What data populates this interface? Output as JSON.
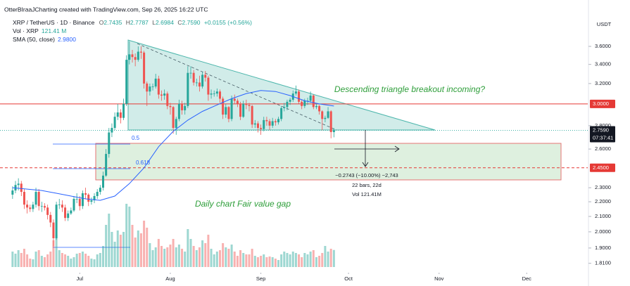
{
  "header": {
    "watermark": "OtterBIraaJCharting created with TradingView.com, Sep 26, 2025 16:22 UTC",
    "symbol": "XRP / TetherUS · 1D · Binance",
    "ohlc": [
      {
        "key": "O",
        "value": "2.7435"
      },
      {
        "key": "H",
        "value": "2.7787"
      },
      {
        "key": "L",
        "value": "2.6984"
      },
      {
        "key": "C",
        "value": "2.7590"
      }
    ],
    "change": "+0.0155 (+0.56%)",
    "volume_name": "Vol · XRP",
    "volume_value": "121.41 M",
    "sma_name": "SMA (50, close)",
    "sma_value": "2.9800"
  },
  "annotations": {
    "triangle": "Descending triangle breakout incoming?",
    "fvg": "Daily chart Fair value gap",
    "fib_05": "0.5",
    "fib_0618": "0.618",
    "measure_change": "−0.2743 (−10.00%) −2,743",
    "measure_bars": "22 bars, 22d",
    "measure_vol": "Vol 121.41M"
  },
  "chart_data": {
    "type": "candlestick",
    "currency": "USDT",
    "log": true,
    "up_color": "#26a69a",
    "down_color": "#ef5350",
    "open": [
      2.25,
      2.28,
      2.32,
      2.33,
      2.27,
      2.18,
      2.16,
      2.15,
      2.18,
      2.27,
      2.17,
      2.17,
      2.16,
      2.11,
      2.06,
      1.96,
      2.18,
      2.18,
      2.16,
      2.09,
      2.12,
      2.14,
      2.22,
      2.22,
      2.17,
      2.26,
      2.25,
      2.2,
      2.21,
      2.24,
      2.27,
      2.3,
      2.39,
      2.56,
      2.74,
      2.78,
      2.88,
      2.92,
      2.87,
      3.0,
      3.45,
      3.51,
      3.48,
      3.45,
      3.54,
      3.53,
      3.2,
      3.12,
      3.17,
      3.17,
      3.25,
      3.09,
      3.08,
      3.1,
      2.98,
      2.97,
      2.78,
      2.86,
      3.0,
      2.94,
      2.98,
      3.31,
      3.31,
      3.21,
      3.21,
      3.17,
      3.29,
      3.26,
      3.09,
      3.1,
      3.1,
      3.12,
      3.05,
      2.9,
      2.97,
      2.86,
      3.05,
      3.03,
      3.0,
      2.88,
      3.0,
      2.99,
      2.98,
      2.81,
      2.82,
      2.78,
      2.77,
      2.85,
      2.84,
      2.8,
      2.84,
      2.83,
      2.86,
      2.96,
      2.97,
      3.02,
      3.04,
      3.1,
      3.12,
      3.02,
      2.98,
      3.03,
      3.03,
      3.08,
      2.97,
      2.98,
      2.93,
      2.86,
      2.87,
      2.93,
      2.7435
    ],
    "high": [
      2.31,
      2.35,
      2.37,
      2.35,
      2.29,
      2.21,
      2.18,
      2.2,
      2.3,
      2.29,
      2.2,
      2.19,
      2.18,
      2.13,
      2.08,
      2.2,
      2.22,
      2.21,
      2.18,
      2.14,
      2.16,
      2.24,
      2.26,
      2.24,
      2.28,
      2.3,
      2.26,
      2.23,
      2.26,
      2.29,
      2.32,
      2.42,
      2.6,
      2.78,
      2.82,
      2.92,
      3.0,
      2.95,
      3.05,
      3.5,
      3.66,
      3.56,
      3.52,
      3.6,
      3.6,
      3.55,
      3.22,
      3.2,
      3.2,
      3.3,
      3.28,
      3.13,
      3.14,
      3.12,
      3.01,
      2.98,
      2.88,
      3.04,
      3.03,
      3.01,
      3.38,
      3.38,
      3.34,
      3.25,
      3.28,
      3.32,
      3.33,
      3.28,
      3.14,
      3.13,
      3.15,
      3.14,
      3.07,
      3.0,
      2.98,
      3.08,
      3.09,
      3.05,
      3.02,
      3.03,
      3.04,
      3.01,
      2.99,
      2.85,
      2.84,
      2.81,
      2.88,
      2.88,
      2.86,
      2.87,
      2.86,
      2.88,
      2.98,
      3.01,
      3.04,
      3.06,
      3.13,
      3.18,
      3.14,
      3.04,
      3.05,
      3.06,
      3.12,
      3.09,
      3.0,
      2.99,
      2.94,
      2.89,
      2.97,
      2.94,
      2.7787
    ],
    "low": [
      2.22,
      2.26,
      2.28,
      2.24,
      2.15,
      2.12,
      2.13,
      2.13,
      2.16,
      2.14,
      2.13,
      2.14,
      2.08,
      2.03,
      1.91,
      1.95,
      2.15,
      2.13,
      2.07,
      2.07,
      2.11,
      2.13,
      2.19,
      2.14,
      2.15,
      2.22,
      2.17,
      2.18,
      2.19,
      2.22,
      2.25,
      2.28,
      2.38,
      2.53,
      2.7,
      2.76,
      2.85,
      2.82,
      2.85,
      2.98,
      3.4,
      3.42,
      3.38,
      3.43,
      3.46,
      3.15,
      2.98,
      3.08,
      3.13,
      3.15,
      3.05,
      3.03,
      3.04,
      2.95,
      2.9,
      2.73,
      2.72,
      2.84,
      2.9,
      2.9,
      2.96,
      3.25,
      3.18,
      3.17,
      3.12,
      3.15,
      3.22,
      3.03,
      3.05,
      3.07,
      3.07,
      3.01,
      2.86,
      2.87,
      2.83,
      2.84,
      3.0,
      2.97,
      2.85,
      2.87,
      2.95,
      2.93,
      2.78,
      2.78,
      2.74,
      2.72,
      2.75,
      2.8,
      2.76,
      2.78,
      2.8,
      2.81,
      2.84,
      2.93,
      2.94,
      2.99,
      3.02,
      3.08,
      3.0,
      2.95,
      2.96,
      2.99,
      3.01,
      2.95,
      2.95,
      2.9,
      2.76,
      2.83,
      2.86,
      2.69,
      2.6984
    ],
    "close": [
      2.28,
      2.32,
      2.33,
      2.27,
      2.18,
      2.16,
      2.15,
      2.18,
      2.27,
      2.17,
      2.17,
      2.16,
      2.11,
      2.06,
      1.96,
      2.18,
      2.18,
      2.16,
      2.09,
      2.12,
      2.14,
      2.22,
      2.22,
      2.17,
      2.26,
      2.25,
      2.2,
      2.21,
      2.24,
      2.27,
      2.3,
      2.39,
      2.56,
      2.74,
      2.78,
      2.88,
      2.92,
      2.87,
      3.0,
      3.45,
      3.51,
      3.48,
      3.45,
      3.54,
      3.53,
      3.2,
      3.12,
      3.17,
      3.17,
      3.25,
      3.09,
      3.08,
      3.1,
      2.98,
      2.97,
      2.78,
      2.86,
      3.0,
      2.94,
      2.98,
      3.31,
      3.31,
      3.21,
      3.21,
      3.17,
      3.29,
      3.26,
      3.09,
      3.1,
      3.1,
      3.12,
      3.05,
      2.9,
      2.97,
      2.86,
      3.05,
      3.03,
      3.0,
      2.88,
      3.0,
      2.99,
      2.98,
      2.81,
      2.82,
      2.78,
      2.77,
      2.85,
      2.84,
      2.8,
      2.84,
      2.83,
      2.86,
      2.96,
      2.97,
      3.02,
      3.04,
      3.1,
      3.12,
      3.02,
      2.98,
      3.03,
      3.03,
      3.08,
      2.97,
      2.98,
      2.93,
      2.86,
      2.87,
      2.93,
      2.7435,
      2.759
    ],
    "volume": [
      110,
      95,
      120,
      100,
      130,
      90,
      60,
      55,
      110,
      120,
      80,
      70,
      90,
      110,
      190,
      230,
      120,
      100,
      90,
      80,
      60,
      70,
      95,
      100,
      110,
      95,
      80,
      60,
      55,
      90,
      100,
      150,
      300,
      380,
      250,
      180,
      260,
      230,
      250,
      450,
      430,
      300,
      210,
      260,
      240,
      330,
      280,
      170,
      120,
      140,
      200,
      150,
      130,
      140,
      160,
      200,
      140,
      160,
      130,
      110,
      270,
      200,
      150,
      120,
      140,
      190,
      170,
      230,
      130,
      90,
      110,
      120,
      170,
      140,
      130,
      160,
      110,
      80,
      120,
      100,
      90,
      90,
      130,
      80,
      70,
      80,
      90,
      70,
      75,
      70,
      60,
      50,
      90,
      110,
      100,
      90,
      110,
      100,
      90,
      70,
      100,
      90,
      110,
      120,
      70,
      80,
      100,
      150,
      110,
      130,
      121.41
    ],
    "sma": {
      "name": "SMA (50, close)",
      "color": "#2962ff",
      "x": [
        0,
        5,
        10,
        15,
        20,
        25,
        30,
        35,
        40,
        45,
        50,
        55,
        60,
        65,
        70,
        75,
        80,
        85,
        90,
        95,
        100,
        105,
        110
      ],
      "values": [
        2.3,
        2.29,
        2.28,
        2.26,
        2.24,
        2.22,
        2.21,
        2.24,
        2.33,
        2.45,
        2.62,
        2.75,
        2.85,
        2.93,
        2.99,
        3.05,
        3.1,
        3.13,
        3.12,
        3.08,
        3.03,
        3.0,
        2.98
      ]
    },
    "xlim": [
      -4.3,
      196.9
    ],
    "xticks": [
      {
        "value": 23,
        "label": "Jul"
      },
      {
        "value": 54,
        "label": "Aug"
      },
      {
        "value": 85,
        "label": "Sep"
      },
      {
        "value": 115,
        "label": "Oct"
      },
      {
        "value": 146,
        "label": "Nov"
      },
      {
        "value": 176,
        "label": "Dec"
      }
    ],
    "ylim": [
      1.769,
      4.17
    ],
    "yticks": [
      {
        "value": 3.6,
        "label": "3.6000"
      },
      {
        "value": 3.4,
        "label": "3.4000"
      },
      {
        "value": 3.2,
        "label": "3.2000"
      },
      {
        "value": 2.8,
        "label": "2.8000"
      },
      {
        "value": 2.6,
        "label": "2.6000"
      },
      {
        "value": 2.3,
        "label": "2.3000"
      },
      {
        "value": 2.2,
        "label": "2.2000"
      },
      {
        "value": 2.1,
        "label": "2.1000"
      },
      {
        "value": 2,
        "label": "2.0000"
      },
      {
        "value": 1.9,
        "label": "1.9000"
      },
      {
        "value": 1.81,
        "label": "1.8100"
      }
    ],
    "price_lines": [
      {
        "value": 3,
        "label": "3.0000",
        "color": "#e53935",
        "dashed": false
      },
      {
        "value": 2.45,
        "label": "2.4500",
        "color": "#e53935",
        "dashed": true
      }
    ],
    "last_price": {
      "value": 2.759,
      "label": "2.7590",
      "countdown": "07:37:41"
    }
  }
}
